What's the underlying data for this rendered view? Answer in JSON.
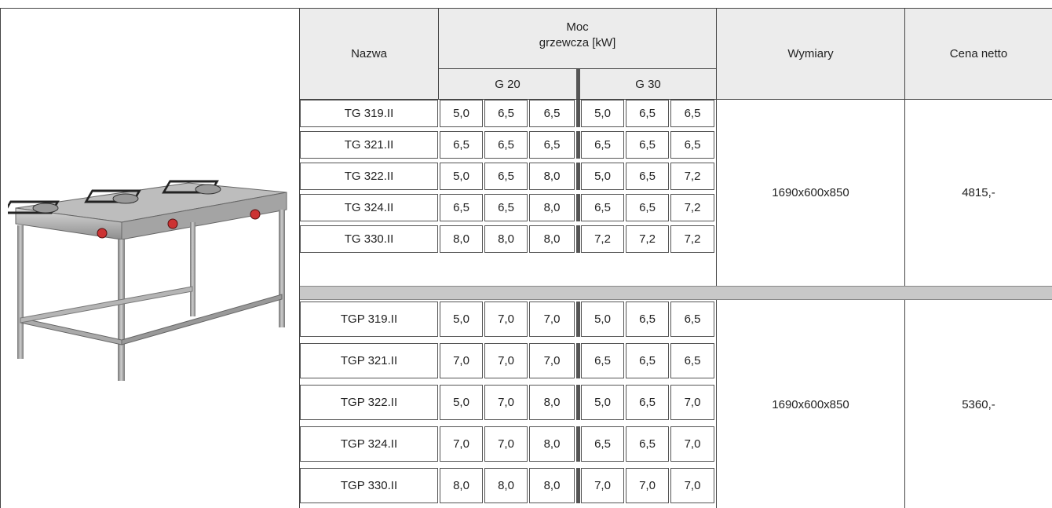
{
  "header": {
    "nazwa": "Nazwa",
    "moc_line1": "Moc",
    "moc_line2": "grzewcza [kW]",
    "wymiary": "Wymiary",
    "cena": "Cena netto",
    "g20": "G 20",
    "g30": "G 30"
  },
  "groups": [
    {
      "wymiary": "1690x600x850",
      "cena": "4815,-",
      "rows": [
        {
          "name": "TG 319.II",
          "g20": [
            "5,0",
            "6,5",
            "6,5"
          ],
          "g30": [
            "5,0",
            "6,5",
            "6,5"
          ]
        },
        {
          "name": "TG 321.II",
          "g20": [
            "6,5",
            "6,5",
            "6,5"
          ],
          "g30": [
            "6,5",
            "6,5",
            "6,5"
          ]
        },
        {
          "name": "TG 322.II",
          "g20": [
            "5,0",
            "6,5",
            "8,0"
          ],
          "g30": [
            "5,0",
            "6,5",
            "7,2"
          ]
        },
        {
          "name": "TG 324.II",
          "g20": [
            "6,5",
            "6,5",
            "8,0"
          ],
          "g30": [
            "6,5",
            "6,5",
            "7,2"
          ]
        },
        {
          "name": "TG 330.II",
          "g20": [
            "8,0",
            "8,0",
            "8,0"
          ],
          "g30": [
            "7,2",
            "7,2",
            "7,2"
          ]
        }
      ]
    },
    {
      "wymiary": "1690x600x850",
      "cena": "5360,-",
      "rows": [
        {
          "name": "TGP 319.II",
          "g20": [
            "5,0",
            "7,0",
            "7,0"
          ],
          "g30": [
            "5,0",
            "6,5",
            "6,5"
          ]
        },
        {
          "name": "TGP 321.II",
          "g20": [
            "7,0",
            "7,0",
            "7,0"
          ],
          "g30": [
            "6,5",
            "6,5",
            "6,5"
          ]
        },
        {
          "name": "TGP 322.II",
          "g20": [
            "5,0",
            "7,0",
            "8,0"
          ],
          "g30": [
            "5,0",
            "6,5",
            "7,0"
          ]
        },
        {
          "name": "TGP 324.II",
          "g20": [
            "7,0",
            "7,0",
            "8,0"
          ],
          "g30": [
            "6,5",
            "6,5",
            "7,0"
          ]
        },
        {
          "name": "TGP 330.II",
          "g20": [
            "8,0",
            "8,0",
            "8,0"
          ],
          "g30": [
            "7,0",
            "7,0",
            "7,0"
          ]
        }
      ]
    }
  ]
}
